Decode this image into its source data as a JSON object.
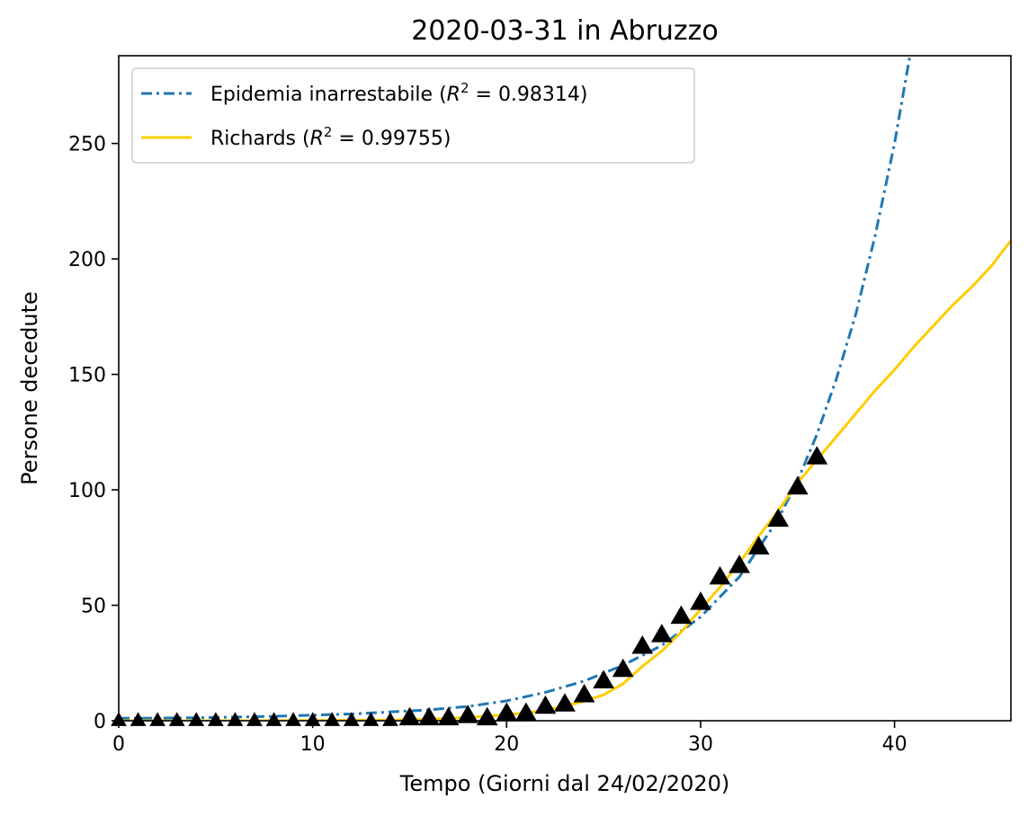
{
  "chart_data": {
    "type": "line",
    "title": "2020-03-31 in Abruzzo",
    "xlabel": "Tempo (Giorni dal 24/02/2020)",
    "ylabel": "Persone decedute",
    "xlim": [
      0,
      46
    ],
    "ylim": [
      0,
      288
    ],
    "xticks": [
      0,
      10,
      20,
      30,
      40
    ],
    "yticks": [
      0,
      50,
      100,
      150,
      200,
      250
    ],
    "grid": false,
    "legend_position": "top-left",
    "legend": [
      {
        "prefix": "Epidemia inarrestabile (",
        "r2": "0.98314",
        "suffix": ")",
        "color": "#1f77b4",
        "style": "dashdot"
      },
      {
        "prefix": "Richards (",
        "r2": "0.99755",
        "suffix": ")",
        "color": "#ffcc00",
        "style": "solid"
      }
    ],
    "r2_symbol": "R",
    "r2_exponent": "2",
    "r2_equals": " = ",
    "observed": {
      "marker": "triangle",
      "color": "#000000",
      "x": [
        0,
        1,
        2,
        3,
        4,
        5,
        6,
        7,
        8,
        9,
        10,
        11,
        12,
        13,
        14,
        15,
        16,
        17,
        18,
        19,
        20,
        21,
        22,
        23,
        24,
        25,
        26,
        27,
        28,
        29,
        30,
        31,
        32,
        33,
        34,
        35,
        36
      ],
      "y": [
        0,
        0,
        0,
        0,
        0,
        0,
        0,
        0,
        0,
        0,
        0,
        0,
        0,
        0,
        0,
        1,
        1,
        1,
        2,
        1,
        3,
        3,
        6,
        7,
        11,
        17,
        22,
        32,
        37,
        45,
        51,
        62,
        67,
        75,
        87,
        101,
        114
      ]
    },
    "series": [
      {
        "name": "Epidemia inarrestabile",
        "color": "#1f77b4",
        "x": [
          0,
          4,
          8,
          12,
          16,
          18,
          20,
          22,
          24,
          26,
          28,
          30,
          32,
          34,
          35,
          36,
          37,
          38,
          39,
          40,
          41,
          41.5
        ],
        "y": [
          1.0,
          1.3,
          1.9,
          2.9,
          4.7,
          6.2,
          8.6,
          12.3,
          17.2,
          24.0,
          32.6,
          45.0,
          62.3,
          87.3,
          104,
          124,
          148,
          176,
          210,
          250,
          298,
          324
        ]
      },
      {
        "name": "Richards",
        "color": "#ffcc00",
        "x": [
          0,
          6,
          10,
          14,
          16,
          18,
          20,
          21,
          22,
          23,
          24,
          25,
          26,
          27,
          28,
          29,
          30,
          31,
          32,
          33,
          34,
          35,
          36,
          37,
          38,
          39,
          40,
          41,
          42,
          43,
          44,
          45,
          46
        ],
        "y": [
          0,
          0,
          0.1,
          0.3,
          0.7,
          1.4,
          2.6,
          3.4,
          4.6,
          6.3,
          8.5,
          11.2,
          16.0,
          23.6,
          30.2,
          38.4,
          48.3,
          57.8,
          68.4,
          80.0,
          90.9,
          103,
          113,
          123,
          133,
          143,
          152,
          162,
          171,
          180,
          188,
          197,
          208
        ]
      }
    ]
  }
}
